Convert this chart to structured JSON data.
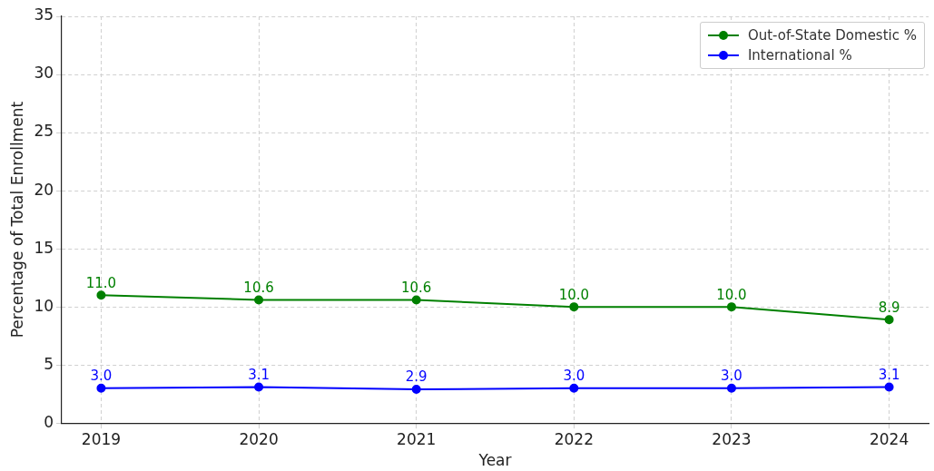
{
  "chart_data": {
    "type": "line",
    "xlabel": "Year",
    "ylabel": "Percentage of Total Enrollment",
    "x": [
      2019,
      2020,
      2021,
      2022,
      2023,
      2024
    ],
    "series": [
      {
        "name": "Out-of-State Domestic %",
        "color": "#008000",
        "values": [
          11.0,
          10.6,
          10.6,
          10.0,
          10.0,
          8.9
        ],
        "value_labels": [
          "11.0",
          "10.6",
          "10.6",
          "10.0",
          "10.0",
          "8.9"
        ]
      },
      {
        "name": "International %",
        "color": "#0000ff",
        "values": [
          3.0,
          3.1,
          2.9,
          3.0,
          3.0,
          3.1
        ],
        "value_labels": [
          "3.0",
          "3.1",
          "2.9",
          "3.0",
          "3.0",
          "3.1"
        ]
      }
    ],
    "xlim": [
      2018.75,
      2024.25
    ],
    "xticks": [
      2019,
      2020,
      2021,
      2022,
      2023,
      2024
    ],
    "ylim": [
      0,
      35
    ],
    "yticks": [
      0,
      5,
      10,
      15,
      20,
      25,
      30,
      35
    ],
    "grid": true,
    "legend": "top right",
    "marker": "circle",
    "line_style": "solid"
  }
}
